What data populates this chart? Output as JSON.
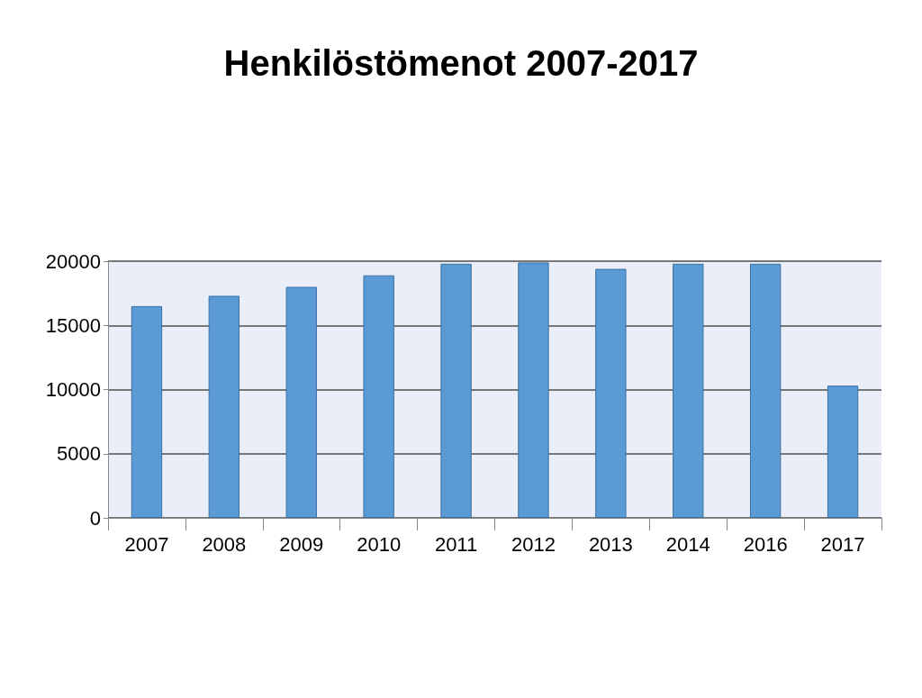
{
  "chart_data": {
    "type": "bar",
    "title": "Henkilöstömenot 2007-2017",
    "categories": [
      "2007",
      "2008",
      "2009",
      "2010",
      "2011",
      "2012",
      "2013",
      "2014",
      "2016",
      "2017"
    ],
    "values": [
      16500,
      17300,
      18000,
      18900,
      19800,
      19900,
      19400,
      19800,
      19800,
      10300
    ],
    "color": "#5b9bd5",
    "ylim": [
      0,
      20000
    ],
    "yticks": [
      0,
      5000,
      10000,
      15000,
      20000
    ],
    "grid": "y"
  }
}
